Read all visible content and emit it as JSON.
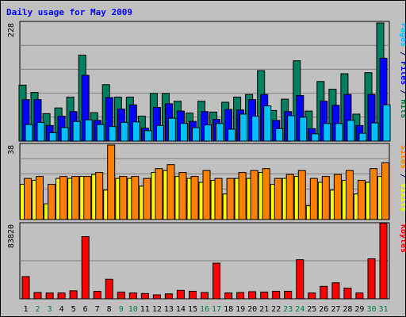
{
  "chart_data": {
    "type": "bar",
    "title": "Daily usage for May 2009",
    "categories": [
      "1",
      "2",
      "3",
      "4",
      "5",
      "6",
      "7",
      "8",
      "9",
      "10",
      "11",
      "12",
      "13",
      "14",
      "15",
      "16",
      "17",
      "18",
      "19",
      "20",
      "21",
      "22",
      "23",
      "24",
      "25",
      "26",
      "27",
      "28",
      "29",
      "30",
      "31"
    ],
    "weekend_days": [
      "2",
      "3",
      "9",
      "10",
      "16",
      "17",
      "23",
      "24",
      "30",
      "31"
    ],
    "panels": [
      {
        "id": "top",
        "scale_label": "228",
        "ymax": 228,
        "side_labels": [
          {
            "text": "Pages",
            "color": "#00c0ff"
          },
          {
            "text": " / ",
            "color": "#000080"
          },
          {
            "text": "Files",
            "color": "#0000ff"
          },
          {
            "text": " / ",
            "color": "#000080"
          },
          {
            "text": "Hits",
            "color": "#008040"
          }
        ],
        "series": [
          {
            "name": "Hits",
            "color": "#008060",
            "values": [
              108,
              94,
              53,
              64,
              85,
              166,
              55,
              109,
              85,
              85,
              48,
              92,
              92,
              77,
              54,
              77,
              56,
              75,
              85,
              90,
              136,
              59,
              81,
              155,
              58,
              115,
              100,
              130,
              52,
              132,
              228
            ]
          },
          {
            "name": "Files",
            "color": "#0000ff",
            "values": [
              80,
              80,
              30,
              48,
              57,
              127,
              40,
              84,
              62,
              70,
              25,
              65,
              72,
              58,
              38,
              57,
              42,
              61,
              60,
              80,
              90,
              40,
              57,
              88,
              24,
              77,
              69,
              90,
              30,
              90,
              160
            ]
          },
          {
            "name": "Pages",
            "color": "#00c0ff",
            "values": [
              32,
              36,
              16,
              26,
              38,
              41,
              32,
              28,
              36,
              37,
              20,
              30,
              44,
              34,
              26,
              31,
              34,
              23,
              52,
              48,
              68,
              24,
              49,
              46,
              14,
              34,
              34,
              40,
              15,
              35,
              70
            ]
          }
        ]
      },
      {
        "id": "mid",
        "scale_label": "38",
        "ymax": 38,
        "side_labels": [
          {
            "text": "Sites",
            "color": "#ff8000"
          },
          {
            "text": " / ",
            "color": "#000080"
          },
          {
            "text": "Visits",
            "color": "#ffff00"
          }
        ],
        "series": [
          {
            "name": "Visits",
            "color": "#ffff00",
            "values": [
              18,
              20,
              8,
              21,
              21,
              22,
              23,
              15,
              21,
              21,
              17,
              24,
              25,
              22,
              21,
              19,
              20,
              13,
              21,
              21,
              24,
              18,
              21,
              22,
              7,
              19,
              15,
              20,
              13,
              19,
              22
            ]
          },
          {
            "name": "Sites",
            "color": "#ff8000",
            "values": [
              21,
              22,
              18,
              22,
              22,
              22,
              24,
              38,
              22,
              22,
              21,
              26,
              28,
              24,
              22,
              25,
              21,
              21,
              24,
              25,
              26,
              21,
              23,
              25,
              21,
              22,
              23,
              25,
              20,
              26,
              29
            ]
          }
        ]
      },
      {
        "id": "bot",
        "scale_label": "83820",
        "ymax": 83820,
        "side_labels": [
          {
            "text": "KBytes",
            "color": "#ff0000"
          }
        ],
        "series": [
          {
            "name": "KBytes",
            "color": "#ff0000",
            "values": [
              25000,
              7000,
              6500,
              6500,
              9000,
              70000,
              8500,
              22000,
              7500,
              6500,
              6000,
              4500,
              5500,
              9500,
              8500,
              7000,
              40000,
              6500,
              7000,
              8000,
              7500,
              8500,
              8500,
              44000,
              6500,
              14000,
              18000,
              12000,
              6500,
              45000,
              85000
            ]
          }
        ]
      }
    ]
  }
}
